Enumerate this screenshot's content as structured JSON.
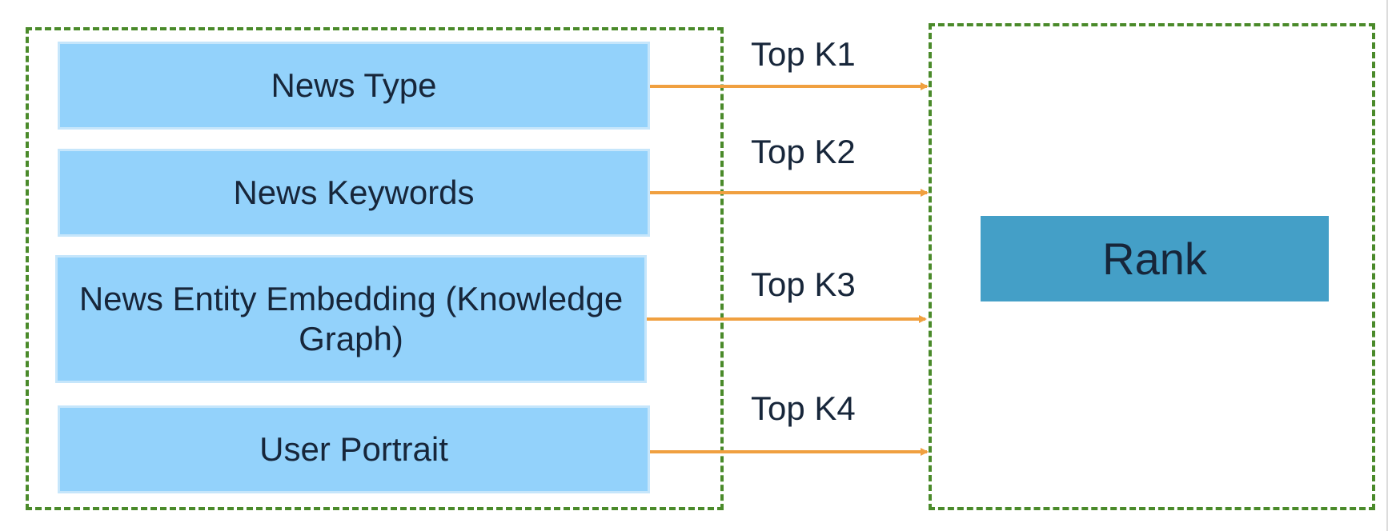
{
  "diagram": {
    "sources": [
      {
        "label": "News Type"
      },
      {
        "label": "News Keywords"
      },
      {
        "label": "News Entity Embedding (Knowledge Graph)"
      },
      {
        "label": "User Portrait"
      }
    ],
    "edges": [
      {
        "label": "Top K1"
      },
      {
        "label": "Top K2"
      },
      {
        "label": "Top K3"
      },
      {
        "label": "Top K4"
      }
    ],
    "target": {
      "label": "Rank"
    },
    "colors": {
      "source_fill": "#93d2fb",
      "target_fill": "#449fc7",
      "arrow": "#f0a040",
      "group_border": "#4a8a2a",
      "text": "#17263a"
    }
  }
}
